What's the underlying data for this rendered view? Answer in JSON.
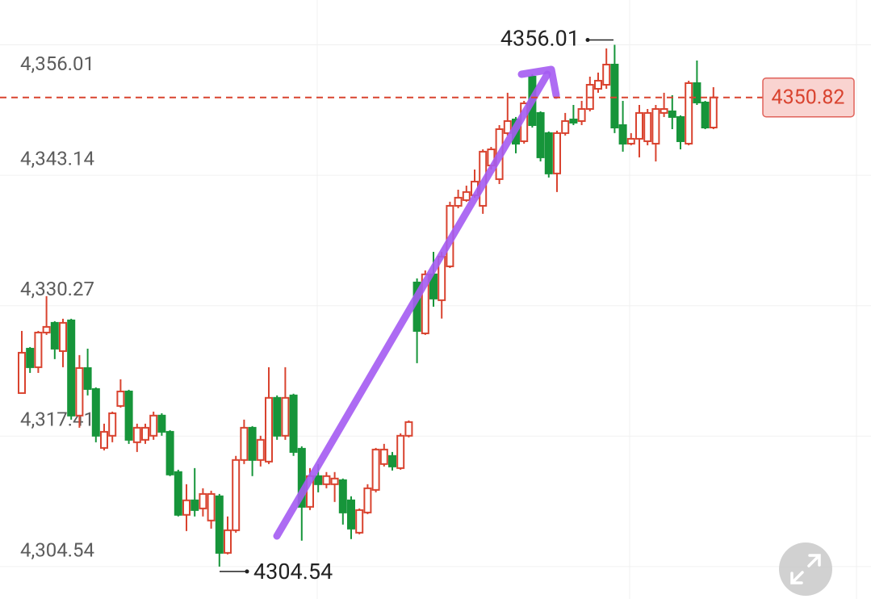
{
  "chart_data": {
    "type": "candlestick",
    "ylim": [
      4301.35,
      4360.43
    ],
    "yticks": [
      {
        "value": 4356.01,
        "label": "4,356.01"
      },
      {
        "value": 4343.14,
        "label": "4,343.14"
      },
      {
        "value": 4330.27,
        "label": "4,330.27"
      },
      {
        "value": 4317.41,
        "label": "4,317.41"
      },
      {
        "value": 4304.54,
        "label": "4,304.54"
      }
    ],
    "up_color": "#d9432f",
    "down_color": "#16953a",
    "max_label": 4356.01,
    "min_label": 4304.54,
    "last_price": 4350.82,
    "open": [
      4321.66,
      4326.04,
      4324.21,
      4327.63,
      4328.59,
      4325.8,
      4328.83,
      4319.44,
      4324.13,
      4322.06,
      4316.25,
      4317.45,
      4320.39,
      4321.82,
      4316.81,
      4317.05,
      4317.45,
      4319.44,
      4317.84,
      4313.87,
      4309.65,
      4311.08,
      4310.28,
      4309.09,
      4311.48,
      4305.9,
      4308.13,
      4315.06,
      4318.24,
      4315.06,
      4314.9,
      4321.19,
      4317.45,
      4321.43,
      4316.17,
      4310.44,
      4313.47,
      4312.67,
      4312.67,
      4313.07,
      4311.08,
      4307.89,
      4309.88,
      4312.11,
      4314.66,
      4315.46,
      4314.26,
      4317.45,
      4332.57,
      4327.55,
      4333.37,
      4330.82,
      4334.16,
      4340.13,
      4340.69,
      4341.17,
      4340.13,
      4344.11,
      4342.76,
      4347.3,
      4348.65,
      4346.5,
      4352.87,
      4349.29,
      4347.3,
      4343.32,
      4347.3,
      4348.65,
      4348.49,
      4349.68,
      4351.67,
      4352.07,
      4354.06,
      4348.09,
      4346.26,
      4346.74,
      4346.5,
      4346.26,
      4349.29,
      4349.45,
      4348.89,
      4346.26,
      4352.23,
      4350.32,
      4347.85
    ],
    "high": [
      4327.79,
      4326.2,
      4327.79,
      4331.22,
      4328.75,
      4328.99,
      4328.99,
      4325.41,
      4326.04,
      4322.22,
      4318.64,
      4319.83,
      4323.02,
      4321.98,
      4318.64,
      4318.64,
      4319.83,
      4319.67,
      4318.0,
      4314.1,
      4312.67,
      4314.26,
      4312.27,
      4312.03,
      4311.71,
      4309.49,
      4315.46,
      4319.04,
      4318.4,
      4317.45,
      4324.21,
      4321.43,
      4324.21,
      4321.59,
      4316.41,
      4314.26,
      4314.66,
      4313.87,
      4313.87,
      4313.23,
      4311.48,
      4310.28,
      4312.67,
      4316.25,
      4316.65,
      4315.85,
      4317.69,
      4318.96,
      4332.97,
      4333.76,
      4335.59,
      4335.59,
      4340.53,
      4341.72,
      4342.12,
      4343.71,
      4345.7,
      4345.94,
      4348.09,
      4351.28,
      4348.89,
      4350.48,
      4353.11,
      4349.45,
      4347.46,
      4347.54,
      4349.29,
      4350.08,
      4350.48,
      4352.87,
      4353.27,
      4355.65,
      4356.01,
      4350.48,
      4347.3,
      4350.08,
      4349.68,
      4350.08,
      4351.28,
      4351.04,
      4349.05,
      4352.47,
      4354.46,
      4350.48,
      4351.83
    ],
    "low": [
      4321.66,
      4323.65,
      4323.65,
      4327.4,
      4325.01,
      4324.21,
      4319.04,
      4318.24,
      4321.43,
      4316.81,
      4316.01,
      4316.81,
      4320.23,
      4316.65,
      4315.85,
      4316.65,
      4317.05,
      4317.45,
      4313.47,
      4309.49,
      4308.05,
      4309.49,
      4309.49,
      4308.29,
      4304.54,
      4305.75,
      4307.89,
      4314.66,
      4313.47,
      4314.42,
      4314.66,
      4317.05,
      4317.05,
      4315.46,
      4307.1,
      4310.12,
      4311.87,
      4312.27,
      4310.92,
      4308.69,
      4307.26,
      4307.73,
      4309.72,
      4311.87,
      4314.42,
      4314.02,
      4314.1,
      4317.29,
      4324.61,
      4327.4,
      4330.18,
      4329.01,
      4334.0,
      4339.89,
      4340.53,
      4340.93,
      4339.34,
      4343.71,
      4342.28,
      4347.06,
      4345.31,
      4346.26,
      4347.85,
      4344.51,
      4342.92,
      4341.49,
      4347.06,
      4348.09,
      4348.09,
      4349.45,
      4351.28,
      4351.67,
      4347.3,
      4345.47,
      4346.1,
      4344.91,
      4346.1,
      4344.51,
      4348.89,
      4347.69,
      4345.7,
      4346.1,
      4350.08,
      4347.69,
      4347.69
    ],
    "close": [
      4325.64,
      4324.21,
      4327.63,
      4328.19,
      4326.04,
      4328.59,
      4319.44,
      4324.13,
      4322.06,
      4317.45,
      4317.84,
      4319.67,
      4321.82,
      4317.05,
      4318.24,
      4318.24,
      4319.44,
      4317.84,
      4313.63,
      4309.65,
      4311.08,
      4310.12,
      4311.71,
      4311.71,
      4305.9,
      4308.13,
      4315.06,
      4318.24,
      4315.06,
      4317.05,
      4321.19,
      4317.45,
      4321.19,
      4315.85,
      4310.44,
      4313.47,
      4312.67,
      4313.47,
      4313.23,
      4309.88,
      4308.29,
      4310.12,
      4312.27,
      4316.09,
      4316.09,
      4314.42,
      4317.45,
      4318.8,
      4327.79,
      4333.37,
      4330.98,
      4335.12,
      4340.13,
      4340.93,
      4341.49,
      4342.52,
      4345.47,
      4345.7,
      4347.69,
      4348.49,
      4346.26,
      4350.24,
      4348.09,
      4344.91,
      4343.32,
      4347.3,
      4348.49,
      4348.33,
      4349.68,
      4352.07,
      4352.47,
      4354.06,
      4347.85,
      4346.26,
      4346.74,
      4349.29,
      4349.29,
      4349.68,
      4349.68,
      4348.89,
      4346.5,
      4352.23,
      4350.32,
      4347.85,
      4350.82
    ]
  }
}
